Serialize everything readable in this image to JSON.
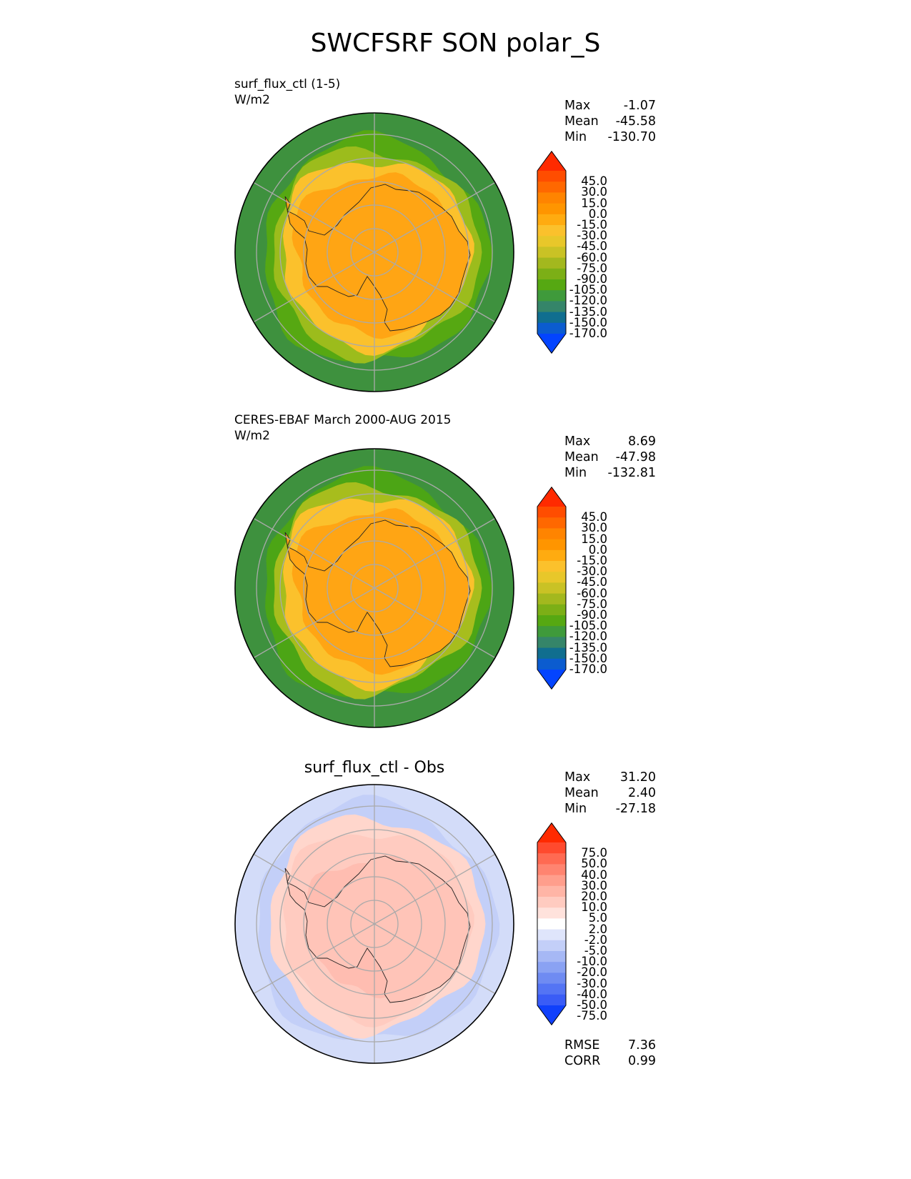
{
  "title": "SWCFSRF SON polar_S",
  "panels": [
    {
      "id": "test",
      "case_label": "surf_flux_ctl (1-5)",
      "units": "W/m2",
      "center_title": "",
      "stats": {
        "max_label": "Max",
        "max": "-1.07",
        "mean_label": "Mean",
        "mean": "-45.58",
        "min_label": "Min",
        "min": "-130.70"
      },
      "colorbar": {
        "tick_labels": [
          "45.0",
          "30.0",
          "15.0",
          "0.0",
          "-15.0",
          "-30.0",
          "-45.0",
          "-60.0",
          "-75.0",
          "-90.0",
          "-105.0",
          "-120.0",
          "-135.0",
          "-150.0",
          "-170.0"
        ],
        "colors": [
          "#ff2a00",
          "#ff4d00",
          "#ff6800",
          "#ff8400",
          "#ff9500",
          "#ffab10",
          "#fbc12c",
          "#e8c72a",
          "#c9c225",
          "#a3b81e",
          "#7caf16",
          "#56a812",
          "#3f9a3b",
          "#358569",
          "#106e8f",
          "#0b5ccf",
          "#0344ff"
        ]
      },
      "map_palette": {
        "outer": "#3e913e",
        "ring1": "#56a812",
        "ring2": "#9cbc1c",
        "ring3": "#fbc12c",
        "inner": "#ffa514",
        "continent": "#ffa514"
      }
    },
    {
      "id": "ref",
      "case_label": "CERES-EBAF March 2000-AUG 2015",
      "units": "W/m2",
      "center_title": "",
      "stats": {
        "max_label": "Max",
        "max": "8.69",
        "mean_label": "Mean",
        "mean": "-47.98",
        "min_label": "Min",
        "min": "-132.81"
      },
      "colorbar": {
        "tick_labels": [
          "45.0",
          "30.0",
          "15.0",
          "0.0",
          "-15.0",
          "-30.0",
          "-45.0",
          "-60.0",
          "-75.0",
          "-90.0",
          "-105.0",
          "-120.0",
          "-135.0",
          "-150.0",
          "-170.0"
        ],
        "colors": [
          "#ff2a00",
          "#ff4d00",
          "#ff6800",
          "#ff8400",
          "#ff9500",
          "#ffab10",
          "#fbc12c",
          "#e8c72a",
          "#c9c225",
          "#a3b81e",
          "#7caf16",
          "#56a812",
          "#3f9a3b",
          "#358569",
          "#106e8f",
          "#0b5ccf",
          "#0344ff"
        ]
      },
      "map_palette": {
        "outer": "#3e913e",
        "ring1": "#4ca515",
        "ring2": "#a7bd1d",
        "ring3": "#fbc12c",
        "inner": "#ffa514",
        "continent": "#ffa514"
      }
    },
    {
      "id": "diff",
      "case_label": "",
      "units": "",
      "center_title": "surf_flux_ctl - Obs",
      "stats": {
        "max_label": "Max",
        "max": "31.20",
        "mean_label": "Mean",
        "mean": "2.40",
        "min_label": "Min",
        "min": "-27.18"
      },
      "colorbar": {
        "tick_labels": [
          "75.0",
          "50.0",
          "40.0",
          "30.0",
          "20.0",
          "10.0",
          "5.0",
          "2.0",
          "-2.0",
          "-5.0",
          "-10.0",
          "-20.0",
          "-30.0",
          "-40.0",
          "-50.0",
          "-75.0"
        ],
        "colors": [
          "#ff2a00",
          "#ff4a2e",
          "#ff6a52",
          "#ff8470",
          "#ff9e8c",
          "#ffb5a6",
          "#ffcbc0",
          "#ffe2dc",
          "#ffffff",
          "#dfe5fb",
          "#c3cff8",
          "#a6b8f5",
          "#8aa2f3",
          "#6f8bf2",
          "#5474f4",
          "#3a5cf6",
          "#1040fb"
        ]
      },
      "map_palette": {
        "outer": "#d3dcf9",
        "ring1": "#c3cff8",
        "ring2": "#ffd6cc",
        "ring3": "#ffcbc0",
        "inner": "#ffbdb1",
        "continent": "#ffc4b8"
      },
      "footer": {
        "rmse_label": "RMSE",
        "rmse": "7.36",
        "corr_label": "CORR",
        "corr": "0.99"
      }
    }
  ]
}
